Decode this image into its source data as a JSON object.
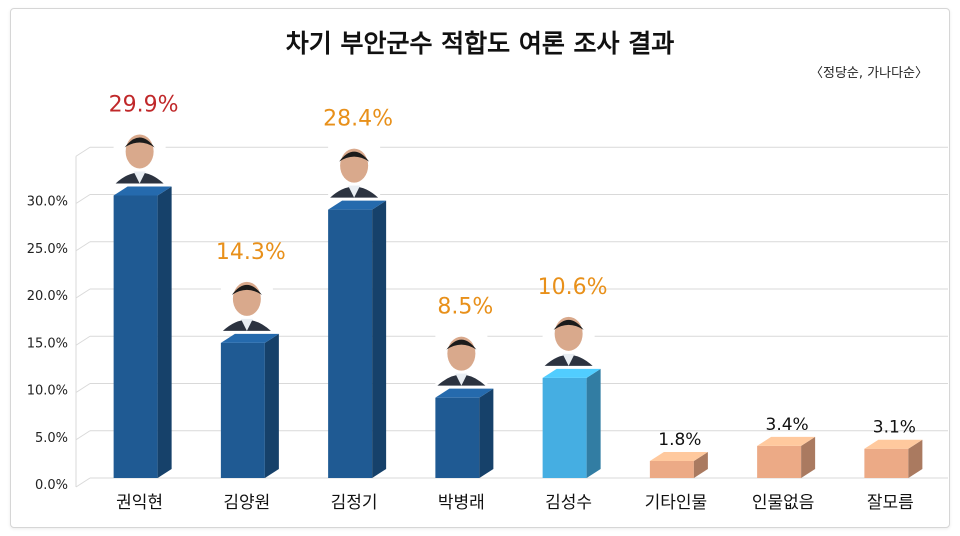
{
  "chart_data": {
    "type": "bar",
    "title": "차기 부안군수 적합도 여론 조사 결과",
    "subtitle": "〈정당순, 가나다순〉",
    "categories": [
      "권익현",
      "김양원",
      "김정기",
      "박병래",
      "김성수",
      "기타인물",
      "인물없음",
      "잘모름"
    ],
    "values": [
      29.9,
      14.3,
      28.4,
      8.5,
      10.6,
      1.8,
      3.4,
      3.1
    ],
    "value_labels": [
      "29.9%",
      "14.3%",
      "28.4%",
      "8.5%",
      "10.6%",
      "1.8%",
      "3.4%",
      "3.1%"
    ],
    "yticks": [
      "0.0%",
      "5.0%",
      "10.0%",
      "15.0%",
      "20.0%",
      "25.0%",
      "30.0%"
    ],
    "ylim": [
      0,
      35
    ],
    "grid": true,
    "colors": {
      "bar_dark": "#1f5a93",
      "bar_light": "#45aee2",
      "bar_other": "#ecaa86",
      "label_top": "#c0282a",
      "label_candidate": "#e8901a",
      "label_other": "#111111"
    },
    "bar_styles": [
      "dark",
      "dark",
      "dark",
      "dark",
      "light",
      "other",
      "other",
      "other"
    ],
    "label_styles": [
      "top",
      "candidate",
      "candidate",
      "candidate",
      "candidate",
      "other",
      "other",
      "other"
    ],
    "has_photo": [
      true,
      true,
      true,
      true,
      true,
      false,
      false,
      false
    ]
  }
}
